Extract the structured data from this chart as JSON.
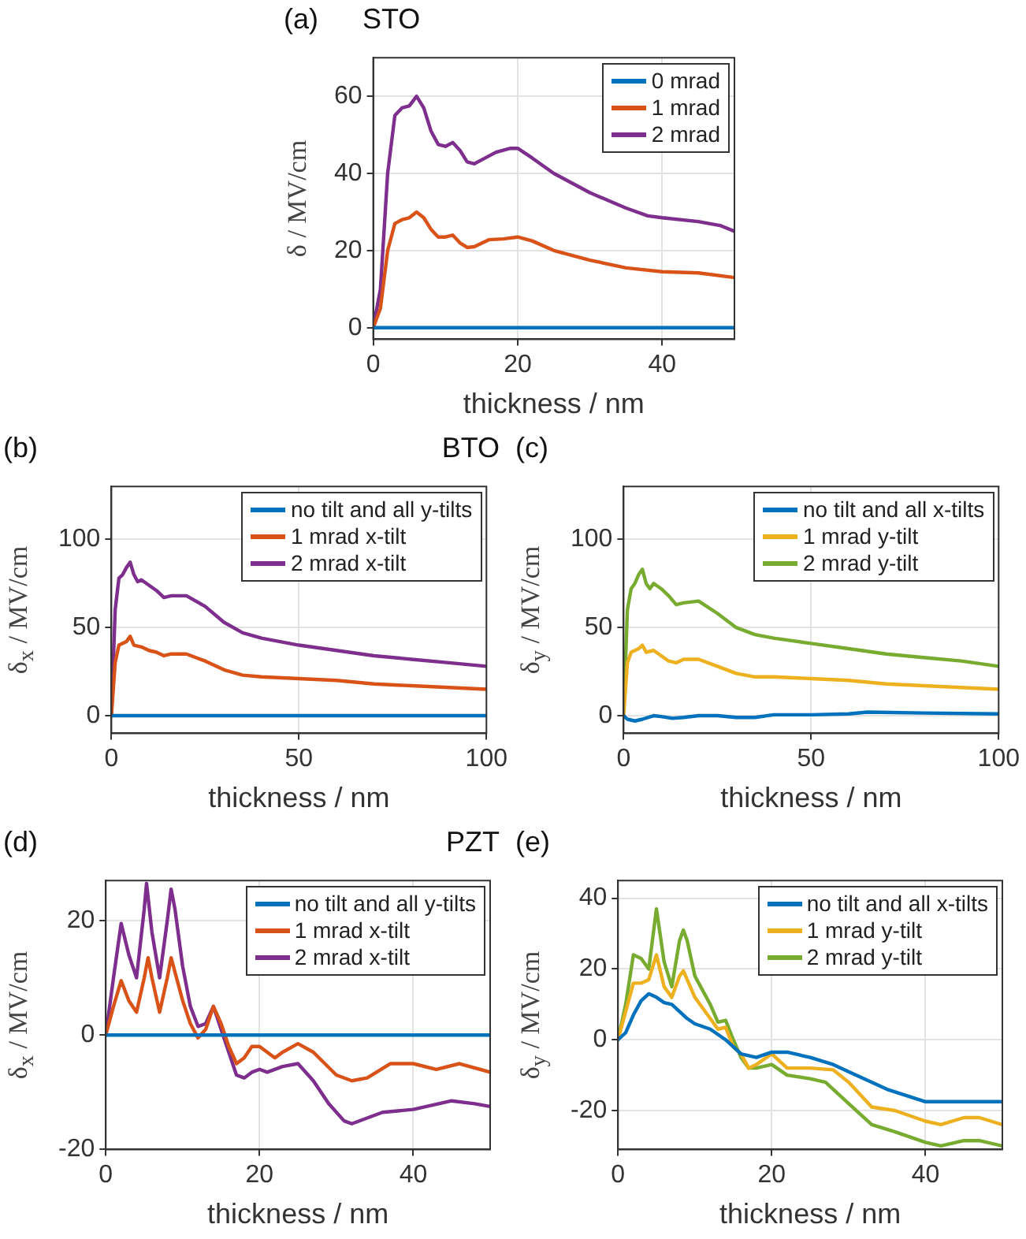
{
  "chart_data": [
    {
      "type": "line",
      "title": "STO",
      "annotations": [
        "(a)"
      ],
      "xlabel": "thickness / nm",
      "ylabel": "δ / MV/cm",
      "xlim": [
        0,
        50
      ],
      "xticks": [
        0,
        20,
        40
      ],
      "ylim": [
        -3,
        70
      ],
      "yticks": [
        0,
        20,
        40,
        60
      ],
      "grid": true,
      "legend": "top right",
      "series": [
        {
          "name": "0 mrad",
          "color": "#0072bd",
          "x": [
            0,
            50
          ],
          "values": [
            0,
            0
          ]
        },
        {
          "name": "1 mrad",
          "color": "#d95319",
          "x": [
            0,
            1,
            2,
            3,
            4,
            5,
            6,
            7,
            8,
            9,
            10,
            11,
            12,
            13,
            14,
            16,
            18,
            20,
            22,
            25,
            30,
            35,
            40,
            45,
            50
          ],
          "values": [
            0,
            5,
            20,
            27,
            28,
            28.5,
            30,
            28.5,
            25.5,
            23.5,
            23.5,
            24,
            22,
            20.8,
            21,
            22.8,
            23,
            23.5,
            22.5,
            20,
            17.5,
            15.5,
            14.5,
            14.2,
            13
          ]
        },
        {
          "name": "2 mrad",
          "color": "#7e2f8e",
          "x": [
            0,
            1,
            2,
            3,
            4,
            5,
            6,
            7,
            8,
            9,
            10,
            11,
            12,
            13,
            14,
            15,
            17,
            19,
            20,
            22,
            25,
            30,
            35,
            38,
            40,
            45,
            48,
            50
          ],
          "values": [
            0,
            10,
            40,
            55,
            57,
            57.5,
            60,
            57,
            51,
            47.5,
            47,
            48,
            46,
            43,
            42.5,
            43.5,
            45.5,
            46.5,
            46.5,
            44,
            40,
            35,
            31,
            29,
            28.5,
            27.5,
            26.5,
            25
          ]
        }
      ]
    },
    {
      "type": "line",
      "title": "BTO",
      "annotations": [
        "(b)"
      ],
      "xlabel": "thickness / nm",
      "ylabel": "δ$_{x}$ / MV/cm",
      "xlim": [
        0,
        100
      ],
      "xticks": [
        0,
        50,
        100
      ],
      "ylim": [
        -10,
        130
      ],
      "yticks": [
        0,
        50,
        100
      ],
      "grid": true,
      "legend": "top right",
      "series": [
        {
          "name": "no tilt and all y-tilts",
          "color": "#0072bd",
          "x": [
            0,
            100
          ],
          "values": [
            0,
            0
          ]
        },
        {
          "name": "1 mrad x-tilt",
          "color": "#d95319",
          "x": [
            0,
            1,
            2,
            4,
            5,
            6,
            8,
            10,
            12,
            14,
            16,
            20,
            25,
            30,
            35,
            40,
            50,
            60,
            70,
            80,
            90,
            100
          ],
          "values": [
            0,
            30,
            40,
            42,
            45,
            40,
            39,
            37,
            36,
            34,
            35,
            35,
            31,
            26,
            23,
            22,
            21,
            20,
            18,
            17,
            16,
            15
          ]
        },
        {
          "name": "2 mrad x-tilt",
          "color": "#7e2f8e",
          "x": [
            0,
            1,
            2,
            3,
            4,
            5,
            6,
            7,
            8,
            10,
            12,
            14,
            16,
            20,
            25,
            30,
            35,
            40,
            50,
            60,
            70,
            80,
            90,
            100
          ],
          "values": [
            0,
            60,
            78,
            80,
            84,
            87,
            80,
            76,
            77,
            74,
            71,
            67,
            68,
            68,
            62,
            53,
            47,
            44,
            40,
            37,
            34,
            32,
            30,
            28
          ]
        }
      ]
    },
    {
      "type": "line",
      "annotations": [
        "(c)"
      ],
      "xlabel": "thickness / nm",
      "ylabel": "δ$_{y}$ / MV/cm",
      "xlim": [
        0,
        100
      ],
      "xticks": [
        0,
        50,
        100
      ],
      "ylim": [
        -10,
        130
      ],
      "yticks": [
        0,
        50,
        100
      ],
      "grid": true,
      "legend": "top right",
      "series": [
        {
          "name": "no tilt and all x-tilts",
          "color": "#0072bd",
          "x": [
            0,
            1,
            3,
            5,
            8,
            10,
            13,
            16,
            20,
            25,
            30,
            35,
            40,
            50,
            60,
            65,
            80,
            100
          ],
          "values": [
            0,
            -2,
            -3,
            -2,
            0,
            -0.5,
            -1.5,
            -1,
            0,
            0,
            -1,
            -1,
            0.5,
            0.5,
            1,
            2,
            1.5,
            1
          ]
        },
        {
          "name": "1 mrad y-tilt",
          "color": "#edb120",
          "x": [
            0,
            1,
            2,
            4,
            5,
            6,
            8,
            10,
            12,
            14,
            16,
            20,
            25,
            30,
            35,
            40,
            50,
            60,
            70,
            80,
            90,
            100
          ],
          "values": [
            0,
            30,
            36,
            38,
            40,
            36,
            37,
            34,
            31,
            30,
            32,
            32,
            28,
            24,
            22,
            22,
            21,
            20,
            18,
            17,
            16,
            15
          ]
        },
        {
          "name": "2 mrad y-tilt",
          "color": "#77ac30",
          "x": [
            0,
            1,
            2,
            3,
            4,
            5,
            6,
            7,
            8,
            10,
            12,
            14,
            16,
            20,
            25,
            30,
            35,
            40,
            50,
            60,
            70,
            80,
            90,
            100
          ],
          "values": [
            0,
            60,
            72,
            75,
            80,
            83,
            75,
            72,
            75,
            72,
            68,
            63,
            64,
            65,
            58,
            50,
            46,
            44,
            41,
            38,
            35,
            33,
            31,
            28
          ]
        }
      ]
    },
    {
      "type": "line",
      "title": "PZT",
      "annotations": [
        "(d)"
      ],
      "xlabel": "thickness / nm",
      "ylabel": "δ$_{x}$ / MV/cm",
      "xlim": [
        0,
        50
      ],
      "xticks": [
        0,
        20,
        40
      ],
      "ylim": [
        -20,
        27
      ],
      "yticks": [
        -20,
        0,
        20
      ],
      "grid": true,
      "legend": "top right",
      "series": [
        {
          "name": "no tilt and all y-tilts",
          "color": "#0072bd",
          "x": [
            0,
            50
          ],
          "values": [
            0,
            0
          ]
        },
        {
          "name": "1 mrad x-tilt",
          "color": "#d95319",
          "x": [
            0,
            1,
            2,
            3,
            4,
            5,
            5.5,
            6,
            7,
            8,
            8.5,
            9,
            10,
            11,
            12,
            13,
            14,
            15,
            16,
            17,
            18,
            19,
            20,
            22,
            23,
            25,
            27,
            30,
            32,
            34,
            37,
            40,
            43,
            46,
            50
          ],
          "values": [
            0,
            5,
            9.5,
            6,
            4,
            10,
            13.5,
            10,
            4,
            10,
            13.5,
            11,
            6,
            2,
            -0.5,
            1,
            5,
            2,
            -2,
            -5,
            -4,
            -2,
            -2,
            -4,
            -3,
            -1.5,
            -3,
            -7,
            -8,
            -7.5,
            -5,
            -5,
            -6,
            -5,
            -6.5
          ]
        },
        {
          "name": "2 mrad x-tilt",
          "color": "#7e2f8e",
          "x": [
            0,
            1,
            2,
            3,
            4,
            5,
            5.3,
            6,
            7,
            8,
            8.5,
            9,
            10,
            11,
            12,
            13,
            14,
            15,
            16,
            17,
            18,
            19,
            20,
            21,
            23,
            25,
            27,
            29,
            31,
            32,
            34,
            36,
            40,
            45,
            48,
            50
          ],
          "values": [
            0,
            10,
            19.5,
            14,
            10,
            22,
            26.5,
            18,
            10,
            20,
            25.5,
            22,
            12,
            5,
            1.5,
            2,
            5,
            1,
            -3,
            -7,
            -7.5,
            -6.5,
            -6,
            -6.5,
            -5.5,
            -5,
            -8,
            -12,
            -15,
            -15.5,
            -14.5,
            -13.5,
            -13,
            -11.5,
            -12,
            -12.5
          ]
        }
      ]
    },
    {
      "type": "line",
      "annotations": [
        "(e)"
      ],
      "xlabel": "thickness / nm",
      "ylabel": "δ$_{y}$ / MV/cm",
      "xlim": [
        0,
        50
      ],
      "xticks": [
        0,
        20,
        40
      ],
      "ylim": [
        -31,
        45
      ],
      "yticks": [
        -20,
        0,
        20,
        40
      ],
      "grid": true,
      "legend": "top right",
      "series": [
        {
          "name": "no tilt and all x-tilts",
          "color": "#0072bd",
          "x": [
            0,
            1,
            2,
            3,
            4,
            5,
            6,
            7,
            8,
            9,
            10,
            12,
            14,
            16,
            18,
            20,
            22,
            25,
            28,
            30,
            35,
            40,
            45,
            50
          ],
          "values": [
            0,
            2,
            7,
            11,
            13,
            12,
            10.5,
            10,
            8,
            6,
            4.5,
            3,
            0,
            -4,
            -5,
            -3.5,
            -3.5,
            -5,
            -7,
            -9,
            -14,
            -17.5,
            -17.5,
            -17.5
          ]
        },
        {
          "name": "1 mrad y-tilt",
          "color": "#edb120",
          "x": [
            0,
            1,
            2,
            3,
            4,
            5,
            6,
            7,
            8,
            8.5,
            9,
            10,
            12,
            13,
            14,
            15,
            16,
            17,
            18,
            20,
            22,
            25,
            28,
            30,
            33,
            36,
            40,
            42,
            45,
            47,
            50
          ],
          "values": [
            0,
            8,
            16,
            16,
            17,
            24,
            15,
            12,
            18,
            19.5,
            17,
            12,
            6,
            3,
            3.5,
            -2,
            -4,
            -8,
            -7,
            -4,
            -8,
            -8,
            -8.5,
            -12,
            -19,
            -20,
            -23,
            -24,
            -22,
            -22,
            -24
          ]
        },
        {
          "name": "2 mrad y-tilt",
          "color": "#77ac30",
          "x": [
            0,
            1,
            2,
            3,
            4,
            5,
            6,
            7,
            8,
            8.5,
            9,
            10,
            12,
            13,
            14,
            15,
            16,
            17,
            18,
            20,
            22,
            25,
            27,
            30,
            33,
            36,
            40,
            42,
            45,
            47,
            50
          ],
          "values": [
            0,
            10,
            24,
            23,
            20,
            37,
            22,
            15,
            28,
            31,
            28,
            18,
            10,
            5,
            5.5,
            0,
            -5,
            -8,
            -8,
            -7,
            -10,
            -11,
            -12,
            -18,
            -24,
            -26,
            -29,
            -30,
            -28.5,
            -28.5,
            -30
          ]
        }
      ]
    }
  ]
}
